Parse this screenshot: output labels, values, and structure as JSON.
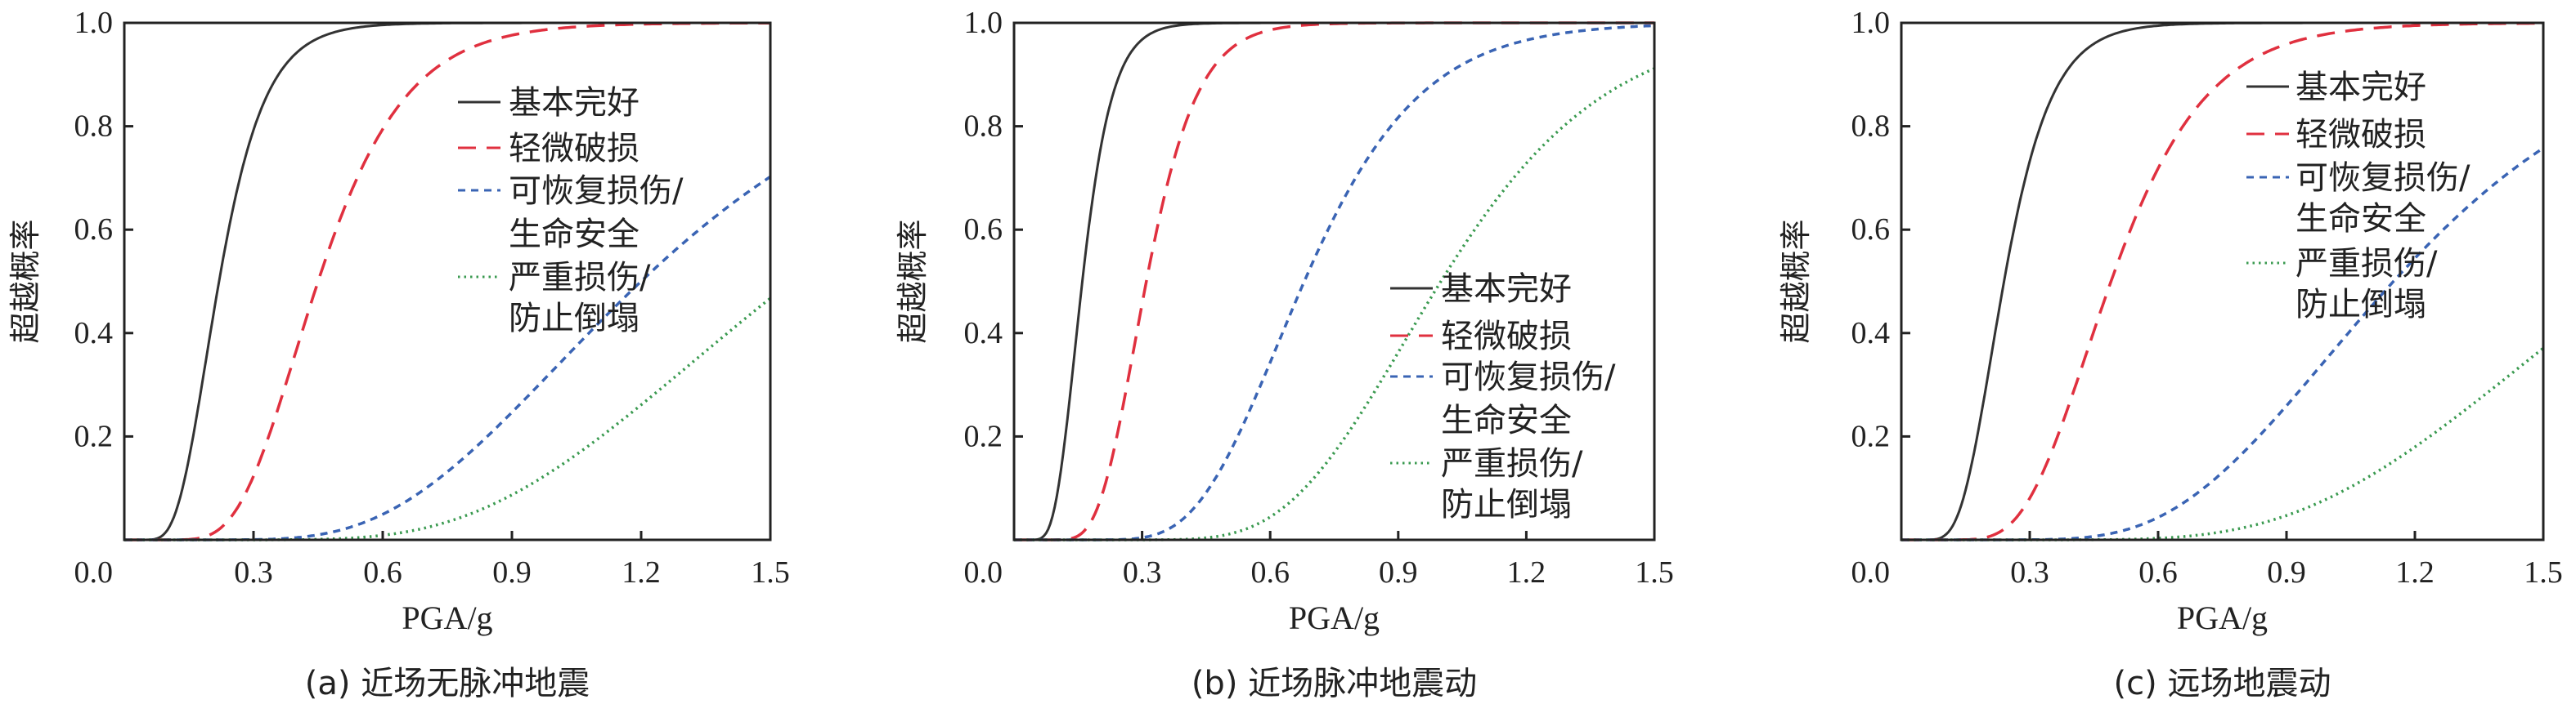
{
  "chart_data": [
    {
      "type": "line",
      "title": "(a) 近场无脉冲地震",
      "xlabel": "PGA/g",
      "ylabel": "超越概率",
      "xlim": [
        0,
        1.5
      ],
      "ylim": [
        0,
        1.0
      ],
      "xticks": [
        "0.3",
        "0.6",
        "0.9",
        "1.2",
        "1.5"
      ],
      "yticks": [
        "0.0",
        "0.2",
        "0.4",
        "0.6",
        "0.8",
        "1.0"
      ],
      "legend_placement": "upper-right",
      "curve_model": "lognormal CDF",
      "series": [
        {
          "name": "基本完好",
          "median": 0.22,
          "beta": 0.38,
          "color": "#333333",
          "style": "solid"
        },
        {
          "name": "轻微破损",
          "median": 0.45,
          "beta": 0.35,
          "color": "#e0303f",
          "style": "dashed"
        },
        {
          "name": "可恢复损伤/生命安全",
          "median": 1.2,
          "beta": 0.42,
          "color": "#3a64b4",
          "style": "short-dashed"
        },
        {
          "name": "严重损伤/防止倒塌",
          "median": 1.55,
          "beta": 0.4,
          "color": "#3a9a50",
          "style": "dotted"
        }
      ],
      "legend_lines": [
        [
          "基本完好"
        ],
        [
          "轻微破损"
        ],
        [
          "可恢复损伤/",
          "生命安全"
        ],
        [
          "严重损伤/",
          "防止倒塌"
        ]
      ]
    },
    {
      "type": "line",
      "title": "(b) 近场脉冲地震动",
      "xlabel": "PGA/g",
      "ylabel": "超越概率",
      "xlim": [
        0,
        1.5
      ],
      "ylim": [
        0,
        1.0
      ],
      "xticks": [
        "0.3",
        "0.6",
        "0.9",
        "1.2",
        "1.5"
      ],
      "yticks": [
        "0.0",
        "0.2",
        "0.4",
        "0.6",
        "0.8",
        "1.0"
      ],
      "legend_placement": "lower-right",
      "curve_model": "lognormal CDF",
      "series": [
        {
          "name": "基本完好",
          "median": 0.16,
          "beta": 0.34,
          "color": "#333333",
          "style": "solid"
        },
        {
          "name": "轻微破损",
          "median": 0.31,
          "beta": 0.3,
          "color": "#e0303f",
          "style": "dashed"
        },
        {
          "name": "可恢复损伤/生命安全",
          "median": 0.68,
          "beta": 0.31,
          "color": "#3a64b4",
          "style": "short-dashed"
        },
        {
          "name": "严重损伤/防止倒塌",
          "median": 1.0,
          "beta": 0.3,
          "color": "#3a9a50",
          "style": "dotted"
        }
      ],
      "legend_lines": [
        [
          "基本完好"
        ],
        [
          "轻微破损"
        ],
        [
          "可恢复损伤/",
          "生命安全"
        ],
        [
          "严重损伤/",
          "防止倒塌"
        ]
      ]
    },
    {
      "type": "line",
      "title": "(c) 远场地震动",
      "xlabel": "PGA/g",
      "ylabel": "超越概率",
      "xlim": [
        0,
        1.5
      ],
      "ylim": [
        0,
        1.0
      ],
      "xticks": [
        "0.3",
        "0.6",
        "0.9",
        "1.2",
        "1.5"
      ],
      "yticks": [
        "0.0",
        "0.2",
        "0.4",
        "0.6",
        "0.8",
        "1.0"
      ],
      "legend_placement": "upper-right",
      "curve_model": "lognormal CDF",
      "series": [
        {
          "name": "基本完好",
          "median": 0.24,
          "beta": 0.36,
          "color": "#333333",
          "style": "solid"
        },
        {
          "name": "轻微破损",
          "median": 0.49,
          "beta": 0.35,
          "color": "#e0303f",
          "style": "dashed"
        },
        {
          "name": "可恢复损伤/生命安全",
          "median": 1.15,
          "beta": 0.38,
          "color": "#3a64b4",
          "style": "short-dashed"
        },
        {
          "name": "严重损伤/防止倒塌",
          "median": 1.7,
          "beta": 0.38,
          "color": "#3a9a50",
          "style": "dotted"
        }
      ],
      "legend_lines": [
        [
          "基本完好"
        ],
        [
          "轻微破损"
        ],
        [
          "可恢复损伤/",
          "生命安全"
        ],
        [
          "严重损伤/",
          "防止倒塌"
        ]
      ]
    }
  ]
}
